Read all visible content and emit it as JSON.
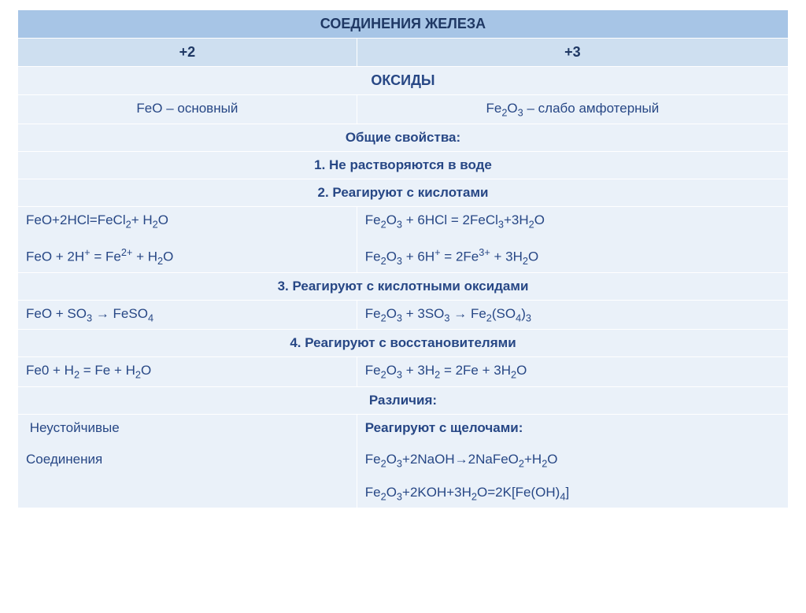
{
  "title": "СОЕДИНЕНИЯ ЖЕЛЕЗА",
  "col_headers": {
    "left": "+2",
    "right": "+3"
  },
  "section_oxides": "ОКСИДЫ",
  "oxide_left": "FeO – основный",
  "oxide_right_prefix": "Fe",
  "oxide_right_html": "Fe₂O₃ – слабо амфотерный",
  "common_props_title": "Общие свойства:",
  "prop1": "1. Не растворяются в воде",
  "prop2": "2. Реагируют с кислотами",
  "row2_left_1": "FeO+2HCl=FeCl₂+ H₂O",
  "row2_left_2": "FeO + 2H⁺ = Fe²⁺ + H₂O",
  "row2_right_1": "Fe₂O₃ + 6HCl = 2FeCl₃+3H₂O",
  "row2_right_2": "Fe₂O₃ + 6H⁺ = 2Fe³⁺ + 3H₂O",
  "prop3": "3. Реагируют с кислотными  оксидами",
  "row3_left": "FeO + SO₃ → FeSO₄",
  "row3_right": "Fe₂O₃ + 3SO₃ → Fe₂(SO₄)₃",
  "prop4": "4. Реагируют с восстановителями",
  "row4_left": "Fe0 + H₂ = Fe + H₂O",
  "row4_right": "Fe₂O₃ + 3H₂ = 2Fe + 3H₂O",
  "diff_title": "Различия:",
  "diff_left_1": "Неустойчивые",
  "diff_left_2": "Соединения",
  "diff_right_1": "Реагируют с щелочами:",
  "diff_right_2": "Fe₂O₃+2NaOH→2NaFeO₂+H₂O",
  "diff_right_3": "Fe₂O₃+2KOH+3H₂O=2K[Fe(OH)₄]",
  "colors": {
    "header_bg": "#a7c5e6",
    "subheader_bg": "#cedff0",
    "cell_bg": "#eaf1f9",
    "border": "#ffffff",
    "text_main": "#1f3864",
    "text_accent": "#3a78c4"
  }
}
